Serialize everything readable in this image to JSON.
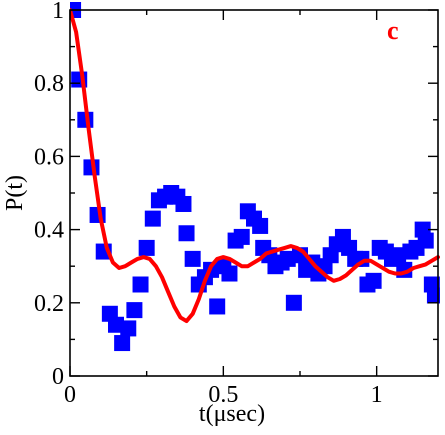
{
  "chart_data": {
    "type": "scatter",
    "panel_label": "c",
    "xlabel": "t(μsec)",
    "ylabel": "P(t)",
    "xlim": [
      0,
      1.2
    ],
    "ylim": [
      0,
      1
    ],
    "x_ticks": [
      {
        "value": 0,
        "label": "0"
      },
      {
        "value": 0.5,
        "label": "0.5"
      },
      {
        "value": 1,
        "label": "1"
      }
    ],
    "y_ticks": [
      {
        "value": 0,
        "label": "0"
      },
      {
        "value": 0.2,
        "label": "0.2"
      },
      {
        "value": 0.4,
        "label": "0.4"
      },
      {
        "value": 0.6,
        "label": "0.6"
      },
      {
        "value": 0.8,
        "label": "0.8"
      },
      {
        "value": 1,
        "label": "1"
      }
    ],
    "colors": {
      "markers": "#0000ff",
      "curve": "#ff0000",
      "panel_label": "#ff0000"
    },
    "series": [
      {
        "kind": "markers",
        "marker": "square",
        "points": [
          [
            0.01,
            1.0
          ],
          [
            0.03,
            0.81
          ],
          [
            0.05,
            0.7
          ],
          [
            0.07,
            0.57
          ],
          [
            0.09,
            0.44
          ],
          [
            0.11,
            0.34
          ],
          [
            0.13,
            0.17
          ],
          [
            0.15,
            0.14
          ],
          [
            0.17,
            0.09
          ],
          [
            0.19,
            0.13
          ],
          [
            0.21,
            0.18
          ],
          [
            0.23,
            0.25
          ],
          [
            0.25,
            0.35
          ],
          [
            0.27,
            0.43
          ],
          [
            0.29,
            0.48
          ],
          [
            0.31,
            0.49
          ],
          [
            0.33,
            0.5
          ],
          [
            0.35,
            0.49
          ],
          [
            0.37,
            0.47
          ],
          [
            0.38,
            0.39
          ],
          [
            0.4,
            0.32
          ],
          [
            0.42,
            0.25
          ],
          [
            0.44,
            0.27
          ],
          [
            0.46,
            0.29
          ],
          [
            0.48,
            0.19
          ],
          [
            0.5,
            0.3
          ],
          [
            0.52,
            0.28
          ],
          [
            0.54,
            0.37
          ],
          [
            0.56,
            0.38
          ],
          [
            0.58,
            0.45
          ],
          [
            0.6,
            0.43
          ],
          [
            0.62,
            0.41
          ],
          [
            0.63,
            0.35
          ],
          [
            0.65,
            0.33
          ],
          [
            0.67,
            0.3
          ],
          [
            0.69,
            0.31
          ],
          [
            0.71,
            0.32
          ],
          [
            0.73,
            0.2
          ],
          [
            0.75,
            0.33
          ],
          [
            0.77,
            0.29
          ],
          [
            0.79,
            0.31
          ],
          [
            0.81,
            0.28
          ],
          [
            0.83,
            0.3
          ],
          [
            0.85,
            0.33
          ],
          [
            0.87,
            0.36
          ],
          [
            0.89,
            0.38
          ],
          [
            0.91,
            0.35
          ],
          [
            0.93,
            0.32
          ],
          [
            0.95,
            0.32
          ],
          [
            0.97,
            0.25
          ],
          [
            0.99,
            0.26
          ],
          [
            1.01,
            0.35
          ],
          [
            1.03,
            0.34
          ],
          [
            1.05,
            0.32
          ],
          [
            1.07,
            0.33
          ],
          [
            1.09,
            0.29
          ],
          [
            1.11,
            0.34
          ],
          [
            1.13,
            0.35
          ],
          [
            1.15,
            0.4
          ],
          [
            1.16,
            0.37
          ],
          [
            1.18,
            0.25
          ],
          [
            1.19,
            0.22
          ]
        ]
      },
      {
        "kind": "line",
        "points": [
          [
            0.0,
            1.0
          ],
          [
            0.02,
            0.94
          ],
          [
            0.04,
            0.82
          ],
          [
            0.06,
            0.68
          ],
          [
            0.08,
            0.55
          ],
          [
            0.1,
            0.43
          ],
          [
            0.12,
            0.35
          ],
          [
            0.14,
            0.31
          ],
          [
            0.16,
            0.295
          ],
          [
            0.18,
            0.3
          ],
          [
            0.2,
            0.31
          ],
          [
            0.22,
            0.32
          ],
          [
            0.24,
            0.325
          ],
          [
            0.26,
            0.32
          ],
          [
            0.28,
            0.3
          ],
          [
            0.3,
            0.27
          ],
          [
            0.32,
            0.23
          ],
          [
            0.34,
            0.19
          ],
          [
            0.36,
            0.16
          ],
          [
            0.38,
            0.15
          ],
          [
            0.4,
            0.17
          ],
          [
            0.42,
            0.21
          ],
          [
            0.44,
            0.26
          ],
          [
            0.46,
            0.3
          ],
          [
            0.48,
            0.32
          ],
          [
            0.5,
            0.325
          ],
          [
            0.52,
            0.32
          ],
          [
            0.54,
            0.31
          ],
          [
            0.56,
            0.3
          ],
          [
            0.58,
            0.3
          ],
          [
            0.6,
            0.31
          ],
          [
            0.62,
            0.32
          ],
          [
            0.64,
            0.335
          ],
          [
            0.66,
            0.34
          ],
          [
            0.68,
            0.345
          ],
          [
            0.7,
            0.35
          ],
          [
            0.72,
            0.355
          ],
          [
            0.74,
            0.35
          ],
          [
            0.76,
            0.34
          ],
          [
            0.78,
            0.32
          ],
          [
            0.8,
            0.3
          ],
          [
            0.82,
            0.285
          ],
          [
            0.84,
            0.27
          ],
          [
            0.86,
            0.26
          ],
          [
            0.88,
            0.265
          ],
          [
            0.9,
            0.275
          ],
          [
            0.92,
            0.29
          ],
          [
            0.94,
            0.305
          ],
          [
            0.96,
            0.315
          ],
          [
            0.98,
            0.315
          ],
          [
            1.0,
            0.305
          ],
          [
            1.02,
            0.295
          ],
          [
            1.04,
            0.285
          ],
          [
            1.06,
            0.28
          ],
          [
            1.08,
            0.28
          ],
          [
            1.1,
            0.285
          ],
          [
            1.12,
            0.295
          ],
          [
            1.14,
            0.3
          ],
          [
            1.16,
            0.305
          ],
          [
            1.18,
            0.315
          ],
          [
            1.2,
            0.325
          ]
        ]
      }
    ]
  }
}
